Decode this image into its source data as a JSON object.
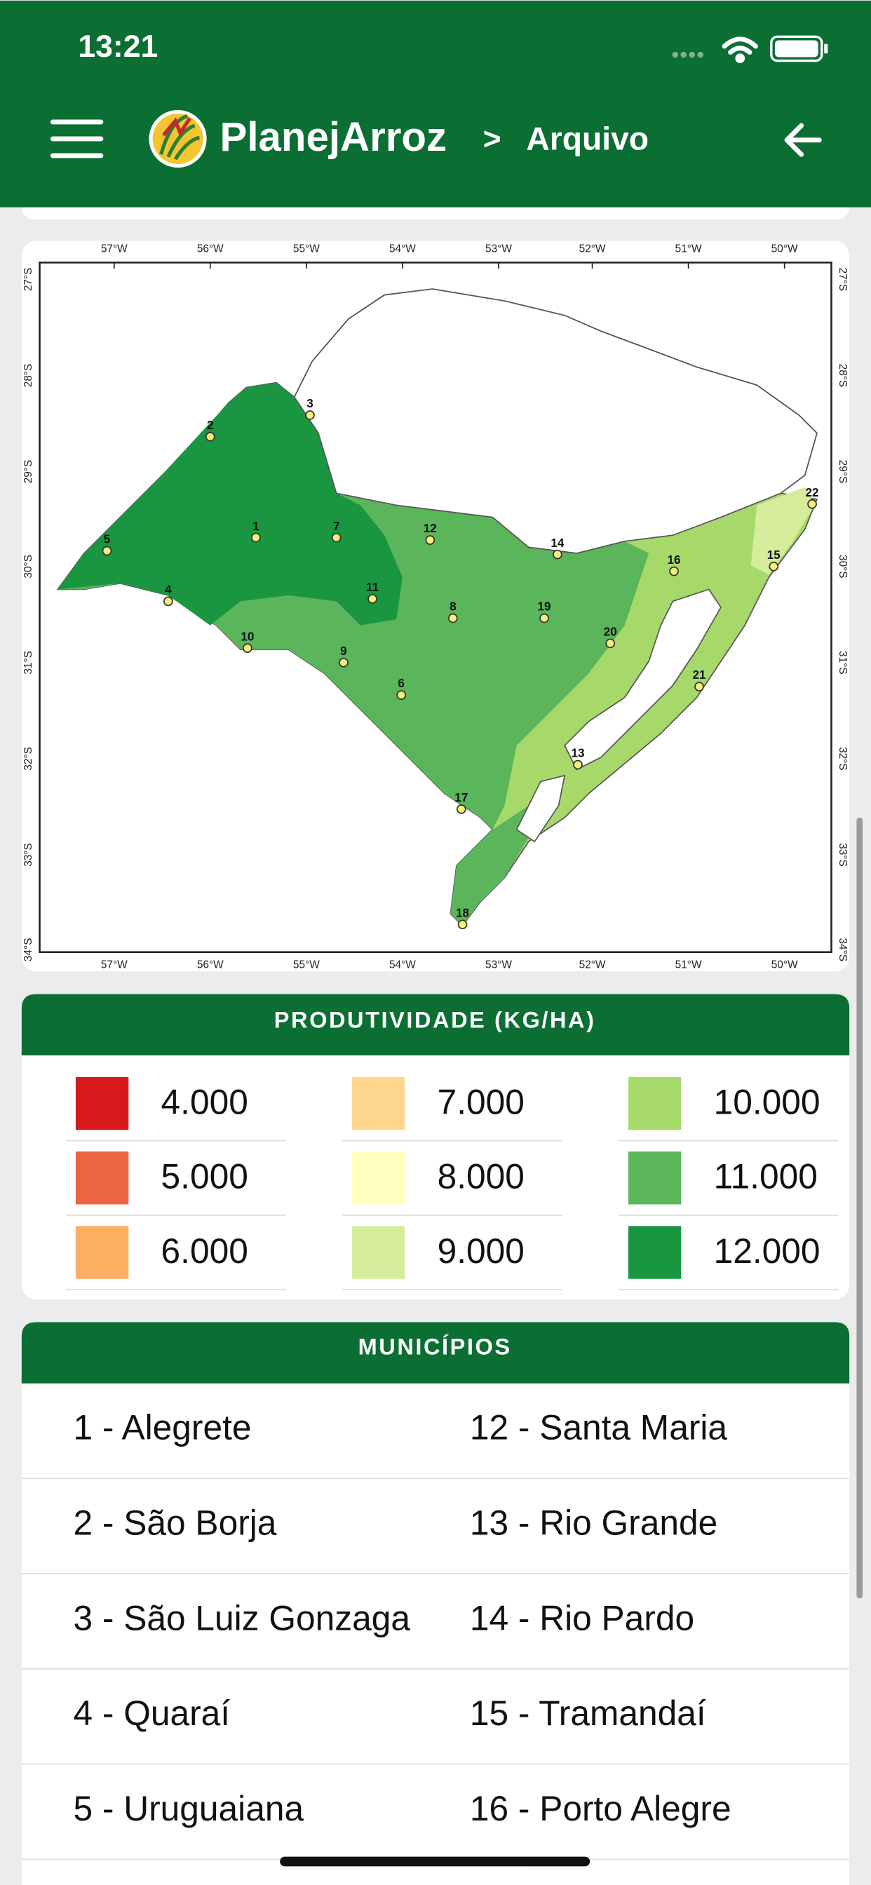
{
  "status_bar": {
    "time": "13:21"
  },
  "header": {
    "app_name": "PlanejArroz",
    "separator": ">",
    "section": "Arquivo"
  },
  "map": {
    "longitude_labels": [
      "57°W",
      "56°W",
      "55°W",
      "54°W",
      "53°W",
      "52°W",
      "51°W",
      "50°W"
    ],
    "latitude_labels": [
      "27°S",
      "28°S",
      "29°S",
      "30°S",
      "31°S",
      "32°S",
      "33°S",
      "34°S"
    ],
    "point_labels": [
      "1",
      "2",
      "3",
      "4",
      "5",
      "6",
      "7",
      "8",
      "9",
      "10",
      "11",
      "12",
      "13",
      "14",
      "15",
      "16",
      "17",
      "18",
      "19",
      "20",
      "21",
      "22"
    ]
  },
  "legend": {
    "title": "PRODUTIVIDADE (KG/HA)",
    "items": [
      {
        "label": "4.000",
        "color": "#d7191c"
      },
      {
        "label": "7.000",
        "color": "#fed690"
      },
      {
        "label": "10.000",
        "color": "#a6d96a"
      },
      {
        "label": "5.000",
        "color": "#ec6442"
      },
      {
        "label": "8.000",
        "color": "#ffffc0"
      },
      {
        "label": "11.000",
        "color": "#5bb55a"
      },
      {
        "label": "6.000",
        "color": "#fdae61"
      },
      {
        "label": "9.000",
        "color": "#d5ec9b"
      },
      {
        "label": "12.000",
        "color": "#1a9641"
      }
    ]
  },
  "municipalities": {
    "title": "MUNICÍPIOS",
    "rows": [
      [
        "1 - Alegrete",
        "12 - Santa Maria"
      ],
      [
        "2 - São Borja",
        "13 - Rio Grande"
      ],
      [
        "3 - São Luiz Gonzaga",
        "14 - Rio Pardo"
      ],
      [
        "4 - Quaraí",
        "15 - Tramandaí"
      ],
      [
        "5 - Uruguaiana",
        "16 - Porto Alegre"
      ]
    ]
  }
}
